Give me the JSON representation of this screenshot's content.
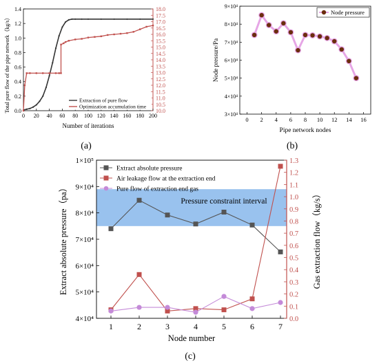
{
  "panels": {
    "a": "(a)",
    "b": "(b)",
    "c": "(c)"
  },
  "chart_data": [
    {
      "panel": "a",
      "type": "line",
      "xlabel": "Number of iterations",
      "ylabel": "Total pure flow of the pipe network（kg/s）",
      "y2label": "",
      "xlim": [
        0,
        200
      ],
      "ylim": [
        0,
        1.4
      ],
      "y2lim": [
        10.0,
        18.0
      ],
      "xticks": [
        "0",
        "20",
        "40",
        "60",
        "80",
        "100",
        "120",
        "140",
        "160",
        "180",
        "200"
      ],
      "yticks": [
        "0.0",
        "0.2",
        "0.4",
        "0.6",
        "0.8",
        "1.0",
        "1.2",
        "1.4"
      ],
      "y2ticks": [
        "10.0",
        "10.5",
        "11.0",
        "11.5",
        "12.0",
        "12.5",
        "13.0",
        "13.5",
        "14.0",
        "14.5",
        "15.0",
        "15.5",
        "16.0",
        "16.5",
        "17.0",
        "17.5",
        "18.0"
      ],
      "legend_position": "bottom-right",
      "series": [
        {
          "name": "Extraction of pure flow",
          "axis": "left",
          "color": "#333333",
          "x": [
            0,
            5,
            10,
            15,
            20,
            25,
            30,
            35,
            40,
            45,
            50,
            55,
            60,
            65,
            70,
            75,
            80,
            90,
            100,
            120,
            140,
            160,
            180,
            200
          ],
          "y": [
            0.01,
            0.02,
            0.03,
            0.05,
            0.08,
            0.13,
            0.2,
            0.32,
            0.48,
            0.66,
            0.86,
            1.03,
            1.15,
            1.22,
            1.25,
            1.26,
            1.26,
            1.26,
            1.26,
            1.26,
            1.26,
            1.26,
            1.26,
            1.26
          ]
        },
        {
          "name": "Optimization accumulation time",
          "axis": "right",
          "color": "#c0504d",
          "x": [
            0,
            2,
            5,
            10,
            20,
            30,
            40,
            50,
            55,
            58,
            58,
            62,
            65,
            70,
            80,
            90,
            100,
            110,
            120,
            130,
            140,
            150,
            160,
            170,
            180,
            190,
            200
          ],
          "y": [
            10.0,
            12.0,
            12.95,
            12.95,
            12.95,
            12.95,
            12.95,
            12.95,
            12.95,
            12.95,
            15.2,
            15.3,
            15.4,
            15.5,
            15.6,
            15.65,
            15.75,
            15.8,
            15.85,
            15.95,
            16.0,
            16.05,
            16.1,
            16.2,
            16.4,
            16.6,
            16.7
          ]
        }
      ]
    },
    {
      "panel": "b",
      "type": "line",
      "xlabel": "Pipe network nodes",
      "ylabel": "Node pressure/Pa",
      "xlim": [
        -1,
        17
      ],
      "ylim": [
        30000,
        90000
      ],
      "xticks": [
        "0",
        "2",
        "4",
        "6",
        "8",
        "10",
        "12",
        "14",
        "16"
      ],
      "yticks": [
        "3×10⁴",
        "4×10⁴",
        "5×10⁴",
        "6×10⁴",
        "7×10⁴",
        "8×10⁴",
        "9×10⁴"
      ],
      "legend_position": "top-right",
      "series": [
        {
          "name": "Node pressure",
          "marker_color": "#6b2d0e",
          "line_color": "#e6a6e6",
          "x": [
            1,
            2,
            3,
            4,
            5,
            6,
            7,
            8,
            9,
            10,
            11,
            12,
            13,
            14,
            15
          ],
          "y": [
            74000,
            85000,
            79500,
            76000,
            80500,
            75500,
            65500,
            74000,
            73800,
            73200,
            72300,
            70500,
            66000,
            59500,
            50000
          ]
        }
      ]
    },
    {
      "panel": "c",
      "type": "line",
      "xlabel": "Node number",
      "ylabel": "Extract absolute pressure（pa）",
      "y2label": "Gas extraction flow（kg/s）",
      "categories": [
        "1",
        "2",
        "3",
        "4",
        "5",
        "6",
        "7"
      ],
      "ylim": [
        40000,
        100000
      ],
      "y2lim": [
        0.0,
        1.3
      ],
      "yticks": [
        "4×10⁴",
        "5×10⁴",
        "6×10⁴",
        "7×10⁴",
        "8×10⁴",
        "9×10⁴",
        "1×10⁵"
      ],
      "y2ticks": [
        "0.0",
        "0.1",
        "0.2",
        "0.3",
        "0.4",
        "0.5",
        "0.6",
        "0.7",
        "0.8",
        "0.9",
        "1.0",
        "1.1",
        "1.2",
        "1.3"
      ],
      "legend_position": "top-left",
      "annotation": "Pressure constraint interval",
      "band": {
        "from": 75000,
        "to": 89000,
        "color": "#99c2ee"
      },
      "series": [
        {
          "name": "Extract absolute pressure",
          "axis": "left",
          "color": "#555555",
          "marker": "square",
          "values": [
            74000,
            84800,
            79200,
            75800,
            80300,
            75400,
            65200
          ]
        },
        {
          "name": "Air leakage flow at the extraction end",
          "axis": "right",
          "color": "#c0504d",
          "marker": "square",
          "values": [
            0.07,
            0.36,
            0.06,
            0.08,
            0.07,
            0.16,
            1.25
          ]
        },
        {
          "name": "Pure flow of extraction end gas",
          "axis": "right",
          "color": "#c48ad8",
          "marker": "circle",
          "values": [
            0.06,
            0.09,
            0.09,
            0.05,
            0.18,
            0.08,
            0.13
          ]
        }
      ]
    }
  ]
}
